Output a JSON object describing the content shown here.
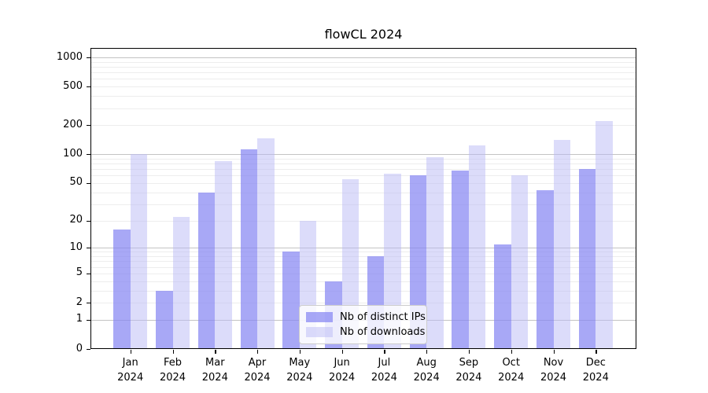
{
  "title": "flowCL 2024",
  "legend": {
    "items": [
      {
        "label": "Nb of distinct IPs"
      },
      {
        "label": "Nb of downloads"
      }
    ]
  },
  "colors": {
    "bar_ips": "rgba(134,134,242,0.72)",
    "bar_downloads": "rgba(185,185,245,0.5)",
    "grid_major": "#c3c3c3",
    "grid_minor": "#ededed",
    "spine": "#000000",
    "text": "#000000"
  },
  "chart_data": {
    "type": "bar",
    "title": "flowCL 2024",
    "categories": [
      "Jan",
      "Feb",
      "Mar",
      "Apr",
      "May",
      "Jun",
      "Jul",
      "Aug",
      "Sep",
      "Oct",
      "Nov",
      "Dec"
    ],
    "year": "2024",
    "x_tick_labels": [
      "Jan 2024",
      "Feb 2024",
      "Mar 2024",
      "Apr 2024",
      "May 2024",
      "Jun 2024",
      "Jul 2024",
      "Aug 2024",
      "Sep 2024",
      "Oct 2024",
      "Nov 2024",
      "Dec 2024"
    ],
    "series": [
      {
        "name": "Nb of distinct IPs",
        "values": [
          16,
          3,
          40,
          113,
          9,
          4,
          8,
          60,
          68,
          11,
          42,
          70
        ]
      },
      {
        "name": "Nb of downloads",
        "values": [
          100,
          22,
          85,
          145,
          20,
          55,
          63,
          93,
          123,
          60,
          140,
          220
        ]
      }
    ],
    "xlabel": "",
    "ylabel": "",
    "yscale": "log1p",
    "y_ticks": [
      0,
      1,
      2,
      5,
      10,
      20,
      50,
      100,
      200,
      500,
      1000
    ],
    "ylim": [
      0,
      1250
    ],
    "grid": true,
    "legend_position": "lower center"
  }
}
